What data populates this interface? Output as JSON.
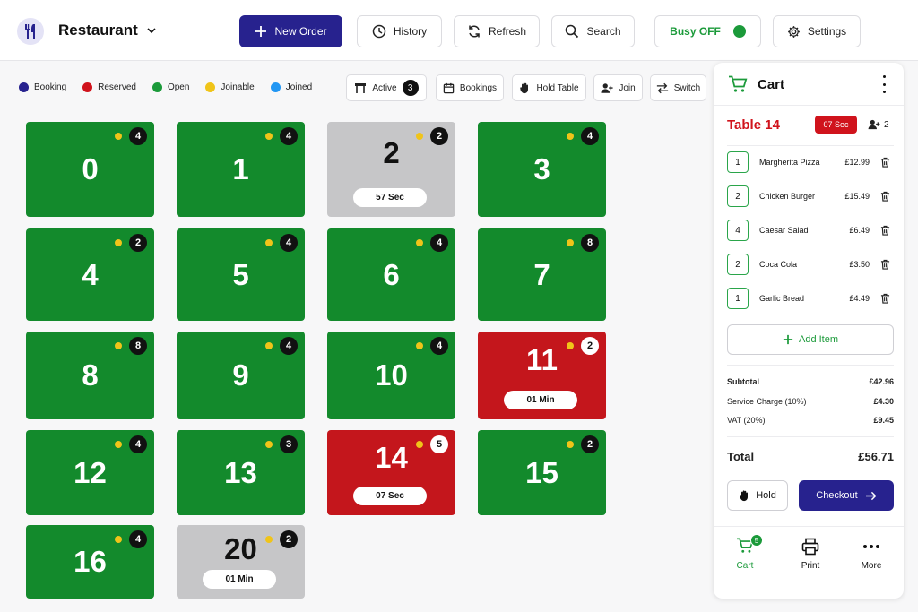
{
  "header": {
    "brand": "Restaurant",
    "new_order": "New Order",
    "history": "History",
    "refresh": "Refresh",
    "search": "Search",
    "busy": "Busy OFF",
    "settings": "Settings"
  },
  "legend": [
    "Booking",
    "Reserved",
    "Open",
    "Joinable",
    "Joined"
  ],
  "legend_colors": {
    "Booking": "#27228e",
    "Reserved": "#d0131c",
    "Open": "#1b9a3a",
    "Joinable": "#f0c419",
    "Joined": "#2196f3"
  },
  "toolbar": {
    "active": "Active",
    "active_count": "3",
    "bookings": "Bookings",
    "hold_table": "Hold Table",
    "join": "Join",
    "switch": "Switch"
  },
  "tables": [
    {
      "number": "0",
      "status": "green",
      "count": "4",
      "timer": ""
    },
    {
      "number": "1",
      "status": "green",
      "count": "4",
      "timer": ""
    },
    {
      "number": "2",
      "status": "gray",
      "count": "2",
      "timer": "57 Sec"
    },
    {
      "number": "3",
      "status": "green",
      "count": "4",
      "timer": ""
    },
    {
      "number": "4",
      "status": "green",
      "count": "2",
      "timer": ""
    },
    {
      "number": "5",
      "status": "green",
      "count": "4",
      "timer": ""
    },
    {
      "number": "6",
      "status": "green",
      "count": "4",
      "timer": ""
    },
    {
      "number": "7",
      "status": "green",
      "count": "8",
      "timer": ""
    },
    {
      "number": "8",
      "status": "green",
      "count": "8",
      "timer": ""
    },
    {
      "number": "9",
      "status": "green",
      "count": "4",
      "timer": ""
    },
    {
      "number": "10",
      "status": "green",
      "count": "4",
      "timer": ""
    },
    {
      "number": "11",
      "status": "red",
      "count": "2",
      "timer": "01 Min"
    },
    {
      "number": "12",
      "status": "green",
      "count": "4",
      "timer": ""
    },
    {
      "number": "13",
      "status": "green",
      "count": "3",
      "timer": ""
    },
    {
      "number": "14",
      "status": "red",
      "count": "5",
      "timer": "07 Sec"
    },
    {
      "number": "15",
      "status": "green",
      "count": "2",
      "timer": ""
    },
    {
      "number": "16",
      "status": "green",
      "count": "4",
      "timer": ""
    },
    {
      "number": "20",
      "status": "gray",
      "count": "2",
      "timer": "01 Min"
    }
  ],
  "cart": {
    "title": "Cart",
    "table": "Table 14",
    "timer": "07 Sec",
    "guests": "2",
    "items": [
      {
        "qty": "1",
        "name": "Margherita Pizza",
        "price": "£12.99"
      },
      {
        "qty": "2",
        "name": "Chicken Burger",
        "price": "£15.49"
      },
      {
        "qty": "4",
        "name": "Caesar Salad",
        "price": "£6.49"
      },
      {
        "qty": "2",
        "name": "Coca Cola",
        "price": "£3.50"
      },
      {
        "qty": "1",
        "name": "Garlic Bread",
        "price": "£4.49"
      }
    ],
    "add_item": "Add Item",
    "subtotal_label": "Subtotal",
    "subtotal": "£42.96",
    "service_label": "Service Charge (10%)",
    "service": "£4.30",
    "vat_label": "VAT (20%)",
    "vat": "£9.45",
    "total_label": "Total",
    "total": "£56.71",
    "hold": "Hold",
    "checkout": "Checkout"
  },
  "nav": {
    "cart": "Cart",
    "cart_count": "5",
    "print": "Print",
    "more": "More"
  }
}
